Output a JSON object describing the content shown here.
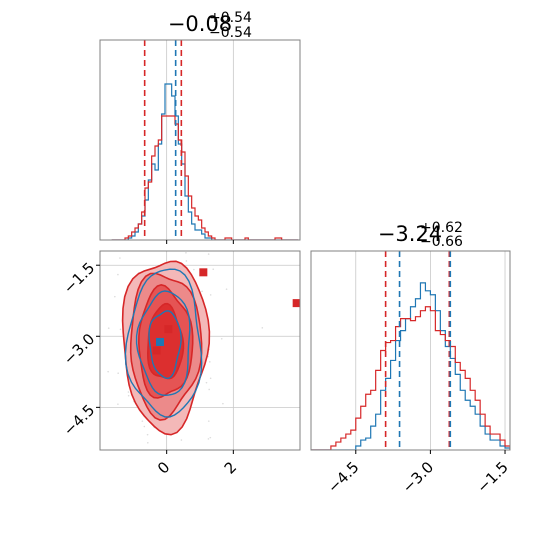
{
  "chart_data": {
    "type": "corner",
    "parameters": [
      "p0",
      "p1"
    ],
    "colors": {
      "blue": "#1f77b4",
      "red": "#d62728",
      "grid": "#c8c8c8",
      "scatter": "#9a9a9a"
    },
    "panels": [
      {
        "id": "p0-hist",
        "title_value": "−0.08",
        "title_plus": "+0.54",
        "title_minus": "−0.54",
        "xlim": [
          -2.0,
          4.0
        ],
        "x_ticks": [
          {
            "value": 0,
            "label": "0"
          },
          {
            "value": 2,
            "label": "2"
          }
        ],
        "bin_centers": [
          -1.6,
          -1.5,
          -1.4,
          -1.3,
          -1.2,
          -1.1,
          -1.0,
          -0.9,
          -0.8,
          -0.7,
          -0.6,
          -0.5,
          -0.4,
          -0.3,
          -0.2,
          -0.1,
          0.0,
          0.1,
          0.2,
          0.3,
          0.4,
          0.5,
          0.6,
          0.7,
          0.8,
          0.9,
          1.0,
          1.1,
          1.2,
          1.3,
          1.4,
          1.5,
          1.6,
          1.7,
          1.8,
          1.9,
          2.0,
          2.1,
          2.2,
          2.3,
          2.4,
          2.5,
          2.6,
          2.7,
          2.8,
          2.9,
          3.0,
          3.1,
          3.2,
          3.3,
          3.4,
          3.5,
          3.6,
          3.7,
          3.8,
          3.9
        ],
        "series": [
          {
            "color": "blue",
            "counts": [
              0,
              0,
              0,
              0,
              0,
              0.01,
              0.02,
              0.04,
              0.08,
              0.12,
              0.2,
              0.3,
              0.38,
              0.35,
              0.48,
              0.63,
              0.78,
              0.78,
              0.72,
              0.62,
              0.48,
              0.38,
              0.22,
              0.14,
              0.08,
              0.05,
              0.05,
              0.03,
              0.01,
              0.01,
              0,
              0,
              0,
              0,
              0,
              0,
              0,
              0,
              0,
              0,
              0,
              0,
              0,
              0,
              0,
              0,
              0,
              0,
              0,
              0,
              0,
              0,
              0,
              0,
              0,
              0
            ]
          },
          {
            "color": "red",
            "counts": [
              0,
              0,
              0,
              0,
              0.01,
              0.02,
              0.04,
              0.06,
              0.08,
              0.14,
              0.26,
              0.29,
              0.42,
              0.47,
              0.5,
              0.62,
              0.62,
              0.62,
              0.62,
              0.58,
              0.5,
              0.44,
              0.32,
              0.22,
              0.16,
              0.12,
              0.1,
              0.06,
              0.04,
              0.02,
              0.01,
              0,
              0,
              0,
              0.01,
              0.01,
              0,
              0,
              0,
              0,
              0.01,
              0,
              0,
              0,
              0,
              0,
              0,
              0,
              0,
              0.01,
              0.01,
              0,
              0,
              0,
              0,
              0
            ]
          }
        ],
        "vlines": [
          {
            "color": "red",
            "value": -0.66
          },
          {
            "color": "blue",
            "value": 0.27
          },
          {
            "color": "red",
            "value": 0.44
          }
        ]
      },
      {
        "id": "p1-hist",
        "title_value": "−3.24",
        "title_plus": "+0.62",
        "title_minus": "−0.66",
        "xlim": [
          -5.4,
          -1.4
        ],
        "x_ticks": [
          {
            "value": -4.5,
            "label": "−4.5"
          },
          {
            "value": -3.0,
            "label": "−3.0"
          },
          {
            "value": -1.5,
            "label": "−1.5"
          }
        ],
        "bin_centers": [
          -5.35,
          -5.25,
          -5.15,
          -5.05,
          -4.95,
          -4.85,
          -4.75,
          -4.65,
          -4.55,
          -4.45,
          -4.35,
          -4.25,
          -4.15,
          -4.05,
          -3.95,
          -3.85,
          -3.75,
          -3.65,
          -3.55,
          -3.45,
          -3.35,
          -3.25,
          -3.15,
          -3.05,
          -2.95,
          -2.85,
          -2.75,
          -2.65,
          -2.55,
          -2.45,
          -2.35,
          -2.25,
          -2.15,
          -2.05,
          -1.95,
          -1.85,
          -1.75,
          -1.65,
          -1.55,
          -1.45
        ],
        "series": [
          {
            "color": "blue",
            "counts": [
              0,
              0,
              0,
              0,
              0,
              0,
              0,
              0,
              0,
              0.02,
              0.05,
              0.06,
              0.12,
              0.18,
              0.3,
              0.36,
              0.45,
              0.55,
              0.6,
              0.66,
              0.72,
              0.76,
              0.84,
              0.8,
              0.78,
              0.7,
              0.6,
              0.52,
              0.46,
              0.38,
              0.3,
              0.25,
              0.22,
              0.18,
              0.12,
              0.08,
              0.05,
              0.05,
              0.02,
              0.01
            ]
          },
          {
            "color": "red",
            "counts": [
              0,
              0,
              0,
              0,
              0.02,
              0.04,
              0.06,
              0.08,
              0.1,
              0.16,
              0.22,
              0.28,
              0.3,
              0.4,
              0.5,
              0.54,
              0.55,
              0.62,
              0.66,
              0.66,
              0.65,
              0.67,
              0.7,
              0.72,
              0.7,
              0.6,
              0.58,
              0.55,
              0.52,
              0.44,
              0.4,
              0.36,
              0.3,
              0.25,
              0.18,
              0.12,
              0.08,
              0.08,
              0.05,
              0.02
            ]
          }
        ],
        "vlines": [
          {
            "color": "red",
            "value": -3.9
          },
          {
            "color": "blue",
            "value": -3.62
          },
          {
            "color": "red",
            "value": -2.62
          },
          {
            "color": "blue",
            "value": -2.6
          }
        ]
      },
      {
        "id": "p0-p1-2d",
        "xlim": [
          -2.0,
          4.0
        ],
        "ylim": [
          -5.4,
          -1.2
        ],
        "x_ticks": [
          {
            "value": 0,
            "label": "0"
          },
          {
            "value": 2,
            "label": "2"
          }
        ],
        "y_ticks": [
          {
            "value": -1.5,
            "label": "−1.5"
          },
          {
            "value": -3.0,
            "label": "−3.0"
          },
          {
            "value": -4.5,
            "label": "−4.5"
          }
        ],
        "center": [
          -0.05,
          -3.15
        ],
        "contour_levels": [
          {
            "color": "red",
            "fill": "#f4b8b8",
            "rx": 1.5,
            "ry": 1.8
          },
          {
            "color": "red",
            "fill": "#ec8a8a",
            "rx": 1.25,
            "ry": 1.5
          },
          {
            "color": "red",
            "fill": "#e55454",
            "rx": 0.95,
            "ry": 1.15
          },
          {
            "color": "red",
            "fill": "#dc2f2f",
            "rx": 0.62,
            "ry": 0.78
          },
          {
            "color": "blue",
            "fill": "none",
            "rx": 1.3,
            "ry": 1.55
          },
          {
            "color": "blue",
            "fill": "none",
            "rx": 0.92,
            "ry": 1.1
          },
          {
            "color": "blue",
            "fill": "none",
            "rx": 0.55,
            "ry": 0.7
          }
        ],
        "markers": [
          {
            "color": "red",
            "x": 1.1,
            "y": -1.65
          },
          {
            "color": "red",
            "x": 3.9,
            "y": -2.3
          },
          {
            "color": "red",
            "x": 0.05,
            "y": -2.85
          },
          {
            "color": "red",
            "x": -0.3,
            "y": -3.3
          },
          {
            "color": "blue",
            "x": -0.2,
            "y": -3.12
          }
        ]
      }
    ]
  }
}
